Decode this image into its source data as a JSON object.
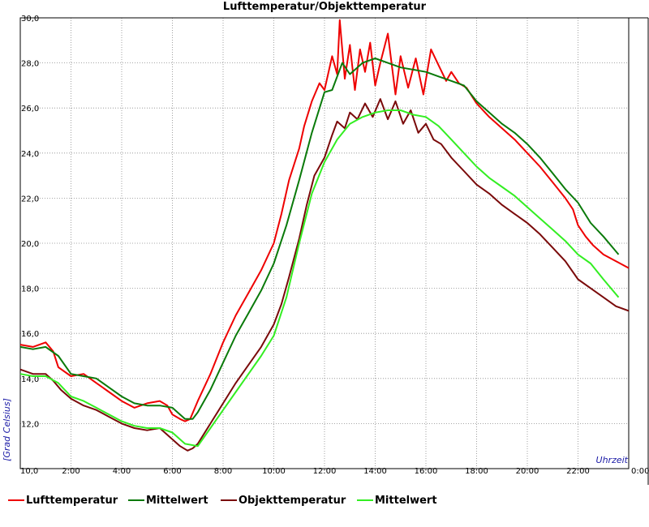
{
  "chart_data": {
    "type": "line",
    "title": "Lufttemperatur/Objekttemperatur",
    "xlabel": "Uhrzeit",
    "ylabel": "[Grad Celsius]",
    "ylim": [
      10.0,
      30.0
    ],
    "xlim": [
      0,
      24
    ],
    "grid": true,
    "legend_position": "bottom",
    "y_ticks": [
      "12,0",
      "14,0",
      "16,0",
      "18,0",
      "20,0",
      "22,0",
      "24,0",
      "26,0",
      "28,0",
      "30,0"
    ],
    "y_tick_values": [
      12,
      14,
      16,
      18,
      20,
      22,
      24,
      26,
      28,
      30
    ],
    "x_ticks": [
      "10,0",
      "2:00",
      "4:00",
      "6:00",
      "8:00",
      "10:00",
      "12:00",
      "14:00",
      "16:00",
      "18:00",
      "20:00",
      "22:00",
      "0:00"
    ],
    "x_tick_values": [
      0,
      2,
      4,
      6,
      8,
      10,
      12,
      14,
      16,
      18,
      20,
      22,
      24
    ],
    "series": [
      {
        "name": "Lufttemperatur",
        "color": "#ee0000",
        "x": [
          0,
          0.5,
          1.0,
          1.3,
          1.5,
          2.0,
          2.5,
          3.0,
          3.5,
          4.0,
          4.5,
          5.0,
          5.5,
          5.8,
          6.0,
          6.3,
          6.5,
          6.7,
          7.0,
          7.5,
          8.0,
          8.5,
          9.0,
          9.5,
          10.0,
          10.3,
          10.6,
          11.0,
          11.2,
          11.5,
          11.8,
          12.0,
          12.3,
          12.5,
          12.6,
          12.8,
          13.0,
          13.2,
          13.4,
          13.6,
          13.8,
          14.0,
          14.2,
          14.5,
          14.8,
          15.0,
          15.3,
          15.6,
          15.9,
          16.2,
          16.5,
          16.8,
          17.0,
          17.3,
          17.6,
          18.0,
          18.5,
          19.0,
          19.5,
          20.0,
          20.5,
          21.0,
          21.5,
          21.8,
          22.0,
          22.3,
          22.6,
          23.0,
          23.5,
          24.0
        ],
        "y": [
          15.5,
          15.4,
          15.6,
          15.2,
          14.5,
          14.1,
          14.2,
          13.8,
          13.4,
          13.0,
          12.7,
          12.9,
          13.0,
          12.8,
          12.4,
          12.2,
          12.1,
          12.2,
          13.0,
          14.2,
          15.6,
          16.8,
          17.8,
          18.8,
          20.0,
          21.3,
          22.8,
          24.2,
          25.2,
          26.3,
          27.1,
          26.8,
          28.3,
          27.5,
          29.9,
          27.3,
          28.8,
          26.8,
          28.6,
          27.6,
          28.9,
          27.0,
          28.0,
          29.3,
          26.6,
          28.3,
          26.9,
          28.2,
          26.6,
          28.6,
          27.9,
          27.2,
          27.6,
          27.1,
          26.9,
          26.2,
          25.6,
          25.1,
          24.6,
          24.0,
          23.4,
          22.7,
          22.0,
          21.5,
          20.8,
          20.3,
          19.9,
          19.5,
          19.2,
          18.9
        ]
      },
      {
        "name": "Mittelwert",
        "color": "#0a7a0a",
        "x": [
          0,
          0.5,
          1.0,
          1.5,
          2.0,
          2.5,
          3.0,
          3.5,
          4.0,
          4.5,
          5.0,
          5.5,
          6.0,
          6.5,
          6.8,
          7.0,
          7.5,
          8.0,
          8.5,
          9.0,
          9.5,
          10.0,
          10.5,
          11.0,
          11.5,
          12.0,
          12.3,
          12.7,
          13.0,
          13.5,
          14.0,
          14.5,
          15.0,
          15.5,
          16.0,
          16.5,
          17.0,
          17.5,
          18.0,
          18.5,
          19.0,
          19.5,
          20.0,
          20.5,
          21.0,
          21.5,
          22.0,
          22.5,
          23.0,
          23.6
        ],
        "y": [
          15.4,
          15.3,
          15.4,
          15.0,
          14.2,
          14.1,
          14.0,
          13.6,
          13.2,
          12.9,
          12.8,
          12.8,
          12.7,
          12.2,
          12.2,
          12.5,
          13.5,
          14.7,
          15.9,
          16.9,
          17.9,
          19.1,
          20.8,
          22.8,
          24.9,
          26.7,
          26.8,
          28.0,
          27.5,
          28.0,
          28.2,
          28.0,
          27.8,
          27.7,
          27.6,
          27.4,
          27.2,
          27.0,
          26.3,
          25.8,
          25.3,
          24.9,
          24.4,
          23.8,
          23.1,
          22.4,
          21.8,
          20.9,
          20.3,
          19.5
        ]
      },
      {
        "name": "Objekttemperatur",
        "color": "#7a0a0a",
        "x": [
          0,
          0.5,
          1.0,
          1.3,
          1.6,
          2.0,
          2.5,
          3.0,
          3.5,
          4.0,
          4.5,
          5.0,
          5.5,
          6.0,
          6.3,
          6.6,
          6.8,
          7.0,
          7.5,
          8.0,
          8.5,
          9.0,
          9.5,
          10.0,
          10.3,
          10.6,
          11.0,
          11.3,
          11.6,
          12.0,
          12.3,
          12.5,
          12.8,
          13.0,
          13.3,
          13.6,
          13.9,
          14.2,
          14.5,
          14.8,
          15.1,
          15.4,
          15.7,
          16.0,
          16.3,
          16.6,
          17.0,
          17.5,
          18.0,
          18.5,
          19.0,
          19.5,
          20.0,
          20.5,
          21.0,
          21.5,
          22.0,
          22.5,
          23.0,
          23.5,
          24.0
        ],
        "y": [
          14.4,
          14.2,
          14.2,
          13.9,
          13.5,
          13.1,
          12.8,
          12.6,
          12.3,
          12.0,
          11.8,
          11.7,
          11.8,
          11.3,
          11.0,
          10.8,
          10.9,
          11.1,
          12.0,
          12.9,
          13.8,
          14.6,
          15.4,
          16.4,
          17.3,
          18.5,
          20.2,
          21.7,
          23.0,
          23.8,
          24.8,
          25.4,
          25.1,
          25.8,
          25.5,
          26.2,
          25.6,
          26.4,
          25.5,
          26.3,
          25.3,
          25.9,
          24.9,
          25.3,
          24.6,
          24.4,
          23.8,
          23.2,
          22.6,
          22.2,
          21.7,
          21.3,
          20.9,
          20.4,
          19.8,
          19.2,
          18.4,
          18.0,
          17.6,
          17.2,
          17.0
        ]
      },
      {
        "name": "Mittelwert",
        "color": "#33ee22",
        "x": [
          0,
          0.5,
          1.0,
          1.5,
          2.0,
          2.5,
          3.0,
          3.5,
          4.0,
          4.5,
          5.0,
          5.5,
          6.0,
          6.5,
          7.0,
          7.5,
          8.0,
          8.5,
          9.0,
          9.5,
          10.0,
          10.5,
          11.0,
          11.5,
          12.0,
          12.5,
          13.0,
          13.5,
          14.0,
          14.5,
          15.0,
          15.5,
          16.0,
          16.5,
          17.0,
          17.5,
          18.0,
          18.5,
          19.0,
          19.5,
          20.0,
          20.5,
          21.0,
          21.5,
          22.0,
          22.5,
          23.0,
          23.6
        ],
        "y": [
          14.2,
          14.1,
          14.1,
          13.8,
          13.2,
          13.0,
          12.7,
          12.4,
          12.1,
          11.9,
          11.8,
          11.8,
          11.6,
          11.1,
          11.0,
          11.8,
          12.6,
          13.4,
          14.2,
          15.0,
          15.9,
          17.6,
          20.0,
          22.2,
          23.6,
          24.6,
          25.3,
          25.6,
          25.8,
          25.9,
          25.9,
          25.7,
          25.6,
          25.2,
          24.6,
          24.0,
          23.4,
          22.9,
          22.5,
          22.1,
          21.6,
          21.1,
          20.6,
          20.1,
          19.5,
          19.1,
          18.4,
          17.6
        ]
      }
    ]
  }
}
